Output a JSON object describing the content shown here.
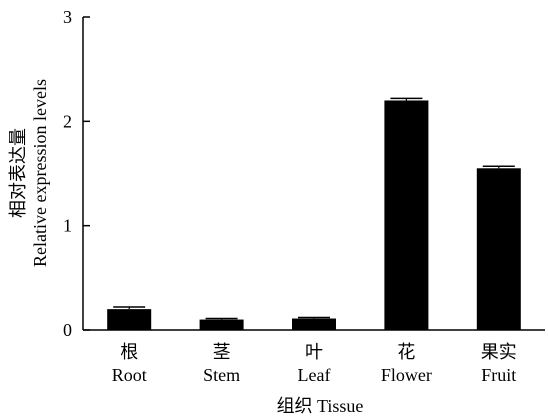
{
  "chart_data": {
    "type": "bar",
    "categories": [
      {
        "zh": "根",
        "en": "Root"
      },
      {
        "zh": "茎",
        "en": "Stem"
      },
      {
        "zh": "叶",
        "en": "Leaf"
      },
      {
        "zh": "花",
        "en": "Flower"
      },
      {
        "zh": "果实",
        "en": "Fruit"
      }
    ],
    "series": [
      {
        "values": [
          0.2,
          0.1,
          0.11,
          2.2,
          1.55
        ],
        "errors": [
          0.02,
          0.01,
          0.01,
          0.02,
          0.02
        ]
      }
    ],
    "ylim": [
      0,
      3
    ],
    "yticks": [
      0,
      1,
      2,
      3
    ],
    "ytick_labels": [
      "0",
      "1",
      "2",
      "3"
    ],
    "ylabel_zh": "相对表达量",
    "ylabel_en": "Relative expression levels",
    "xlabel": "组织 Tissue",
    "grid": false,
    "legend": "none",
    "bar_color": "#000000"
  }
}
